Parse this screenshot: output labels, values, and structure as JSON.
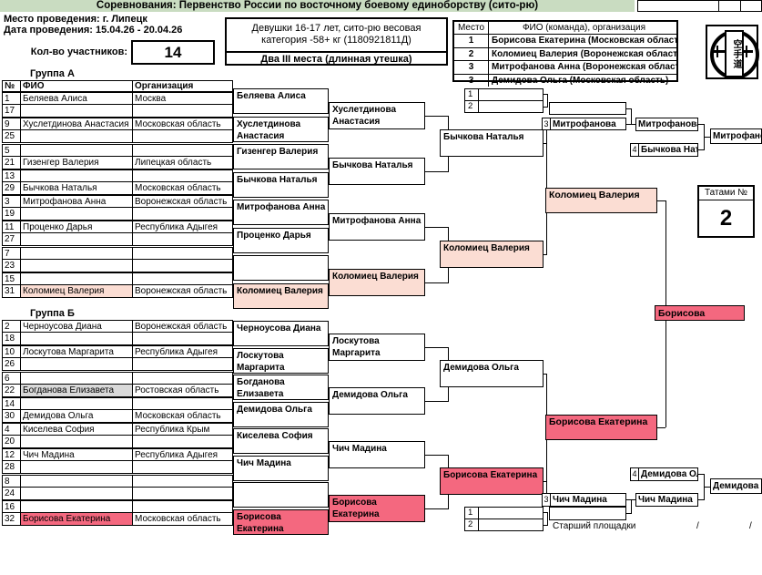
{
  "header": {
    "title": "Соревнования: Первенство России по восточному боевому единоборству (сито-рю)",
    "venue_line": "Место проведения: г. Липецк",
    "date_line": "Дата проведения: 15.04.26 - 20.04.26",
    "participants_label": "Кол-во участников:",
    "participants_count": "14",
    "category_line1": "Девушки 16-17 лет, сито-рю весовая",
    "category_line2": "категория -58+ кг (1180921811Д)",
    "note": "Два III места (длинная утешка)"
  },
  "results": {
    "col_place": "Место",
    "col_name": "ФИО (команда), организация",
    "rows": [
      {
        "place": "1",
        "name": "Борисова Екатерина  (Московская область)"
      },
      {
        "place": "2",
        "name": "Коломиец Валерия  (Воронежская область)"
      },
      {
        "place": "3",
        "name": "Митрофанова Анна  (Воронежская область)"
      },
      {
        "place": "3",
        "name": "Демидова Ольга  (Московская область)"
      }
    ]
  },
  "logo": {
    "kanji": "空手道"
  },
  "tatami": {
    "label": "Татами №",
    "number": "2"
  },
  "group_a": {
    "title": "Группа А",
    "headers": [
      "№",
      "ФИО",
      "Организация"
    ],
    "rows": [
      {
        "n": "1",
        "name": "Беляева Алиса",
        "org": "Москва"
      },
      {
        "n": "17",
        "name": "",
        "org": ""
      },
      {
        "n": "9",
        "name": "Хуслетдинова Анастасия",
        "org": "Московская область"
      },
      {
        "n": "25",
        "name": "",
        "org": ""
      },
      {
        "n": "5",
        "name": "",
        "org": ""
      },
      {
        "n": "21",
        "name": "Гизенгер Валерия",
        "org": "Липецкая область"
      },
      {
        "n": "13",
        "name": "",
        "org": ""
      },
      {
        "n": "29",
        "name": "Бычкова Наталья",
        "org": "Московская область"
      },
      {
        "n": "3",
        "name": "Митрофанова Анна",
        "org": "Воронежская область"
      },
      {
        "n": "19",
        "name": "",
        "org": ""
      },
      {
        "n": "11",
        "name": "Проценко Дарья",
        "org": "Республика Адыгея"
      },
      {
        "n": "27",
        "name": "",
        "org": ""
      },
      {
        "n": "7",
        "name": "",
        "org": ""
      },
      {
        "n": "23",
        "name": "",
        "org": ""
      },
      {
        "n": "15",
        "name": "",
        "org": ""
      },
      {
        "n": "31",
        "name": "Коломиец Валерия",
        "org": "Воронежская область",
        "hl": "pink"
      }
    ]
  },
  "group_b": {
    "title": "Группа Б",
    "rows": [
      {
        "n": "2",
        "name": "Черноусова Диана",
        "org": "Воронежская область"
      },
      {
        "n": "18",
        "name": "",
        "org": ""
      },
      {
        "n": "10",
        "name": "Лоскутова Маргарита",
        "org": "Республика Адыгея"
      },
      {
        "n": "26",
        "name": "",
        "org": ""
      },
      {
        "n": "6",
        "name": "",
        "org": ""
      },
      {
        "n": "22",
        "name": "Богданова Елизавета",
        "org": "Ростовская область",
        "hl": "gray"
      },
      {
        "n": "14",
        "name": "",
        "org": ""
      },
      {
        "n": "30",
        "name": "Демидова Ольга",
        "org": "Московская область"
      },
      {
        "n": "4",
        "name": "Киселева София",
        "org": "Республика Крым"
      },
      {
        "n": "20",
        "name": "",
        "org": ""
      },
      {
        "n": "12",
        "name": "Чич Мадина",
        "org": "Республика Адыгея"
      },
      {
        "n": "28",
        "name": "",
        "org": ""
      },
      {
        "n": "8",
        "name": "",
        "org": ""
      },
      {
        "n": "24",
        "name": "",
        "org": ""
      },
      {
        "n": "16",
        "name": "",
        "org": ""
      },
      {
        "n": "32",
        "name": "Борисова Екатерина",
        "org": "Московская область",
        "hl": "red"
      }
    ]
  },
  "bracket": {
    "a_r1": [
      {
        "t": "Беляева Алиса"
      },
      {
        "t": "Хуслетдинова Анастасия"
      },
      {
        "t": "Гизенгер Валерия"
      },
      {
        "t": "Бычкова Наталья"
      },
      {
        "t": "Митрофанова Анна"
      },
      {
        "t": "Проценко Дарья"
      },
      {
        "t": ""
      },
      {
        "t": "Коломиец Валерия",
        "hl": "pink"
      }
    ],
    "a_r2": [
      {
        "t": "Хуслетдинова Анастасия"
      },
      {
        "t": "Бычкова Наталья"
      },
      {
        "t": "Митрофанова Анна"
      },
      {
        "t": "Коломиец Валерия",
        "hl": "pink"
      }
    ],
    "a_sf": [
      {
        "t": "Бычкова Наталья"
      },
      {
        "t": "Коломиец Валерия",
        "hl": "pink"
      }
    ],
    "a_final": {
      "t": "Коломиец Валерия",
      "hl": "pink"
    },
    "b_r1": [
      {
        "t": "Черноусова Диана"
      },
      {
        "t": "Лоскутова Маргарита"
      },
      {
        "t": "Богданова Елизавета"
      },
      {
        "t": "Демидова Ольга"
      },
      {
        "t": "Киселева София"
      },
      {
        "t": "Чич Мадина"
      },
      {
        "t": ""
      },
      {
        "t": "Борисова Екатерина",
        "hl": "red"
      }
    ],
    "b_r2": [
      {
        "t": "Лоскутова Маргарита"
      },
      {
        "t": "Демидова Ольга"
      },
      {
        "t": "Чич Мадина"
      },
      {
        "t": "Борисова Екатерина",
        "hl": "red"
      }
    ],
    "b_sf": [
      {
        "t": "Демидова Ольга"
      },
      {
        "t": "Борисова Екатерина",
        "hl": "red"
      }
    ],
    "b_final": {
      "t": "Борисова Екатерина",
      "hl": "red"
    },
    "champion": {
      "t": "Борисова",
      "hl": "red"
    }
  },
  "repechage_top": {
    "slots": [
      "1",
      "2"
    ],
    "semi": "",
    "place3_num": "3",
    "place3": "Митрофанова",
    "stage2": "Митрофанова",
    "place4_num": "4",
    "place4": "Бычкова Наталья",
    "winner": "Митрофанова"
  },
  "repechage_bottom": {
    "slots": [
      "1",
      "2"
    ],
    "semi": "",
    "place3_num": "3",
    "place3": "Чич Мадина",
    "stage2": "Чич Мадина",
    "place4_num": "4",
    "place4": "Демидова Ольга",
    "winner": "Демидова Ольга"
  },
  "footer": {
    "official_label": "Старший площадки",
    "sep1": "/",
    "sep2": "/"
  },
  "colors": {
    "header_green": "#C9DCC1",
    "light_pink": "#FBDDD3",
    "strong_pink": "#F4687F",
    "gray": "#D9D9D9"
  }
}
